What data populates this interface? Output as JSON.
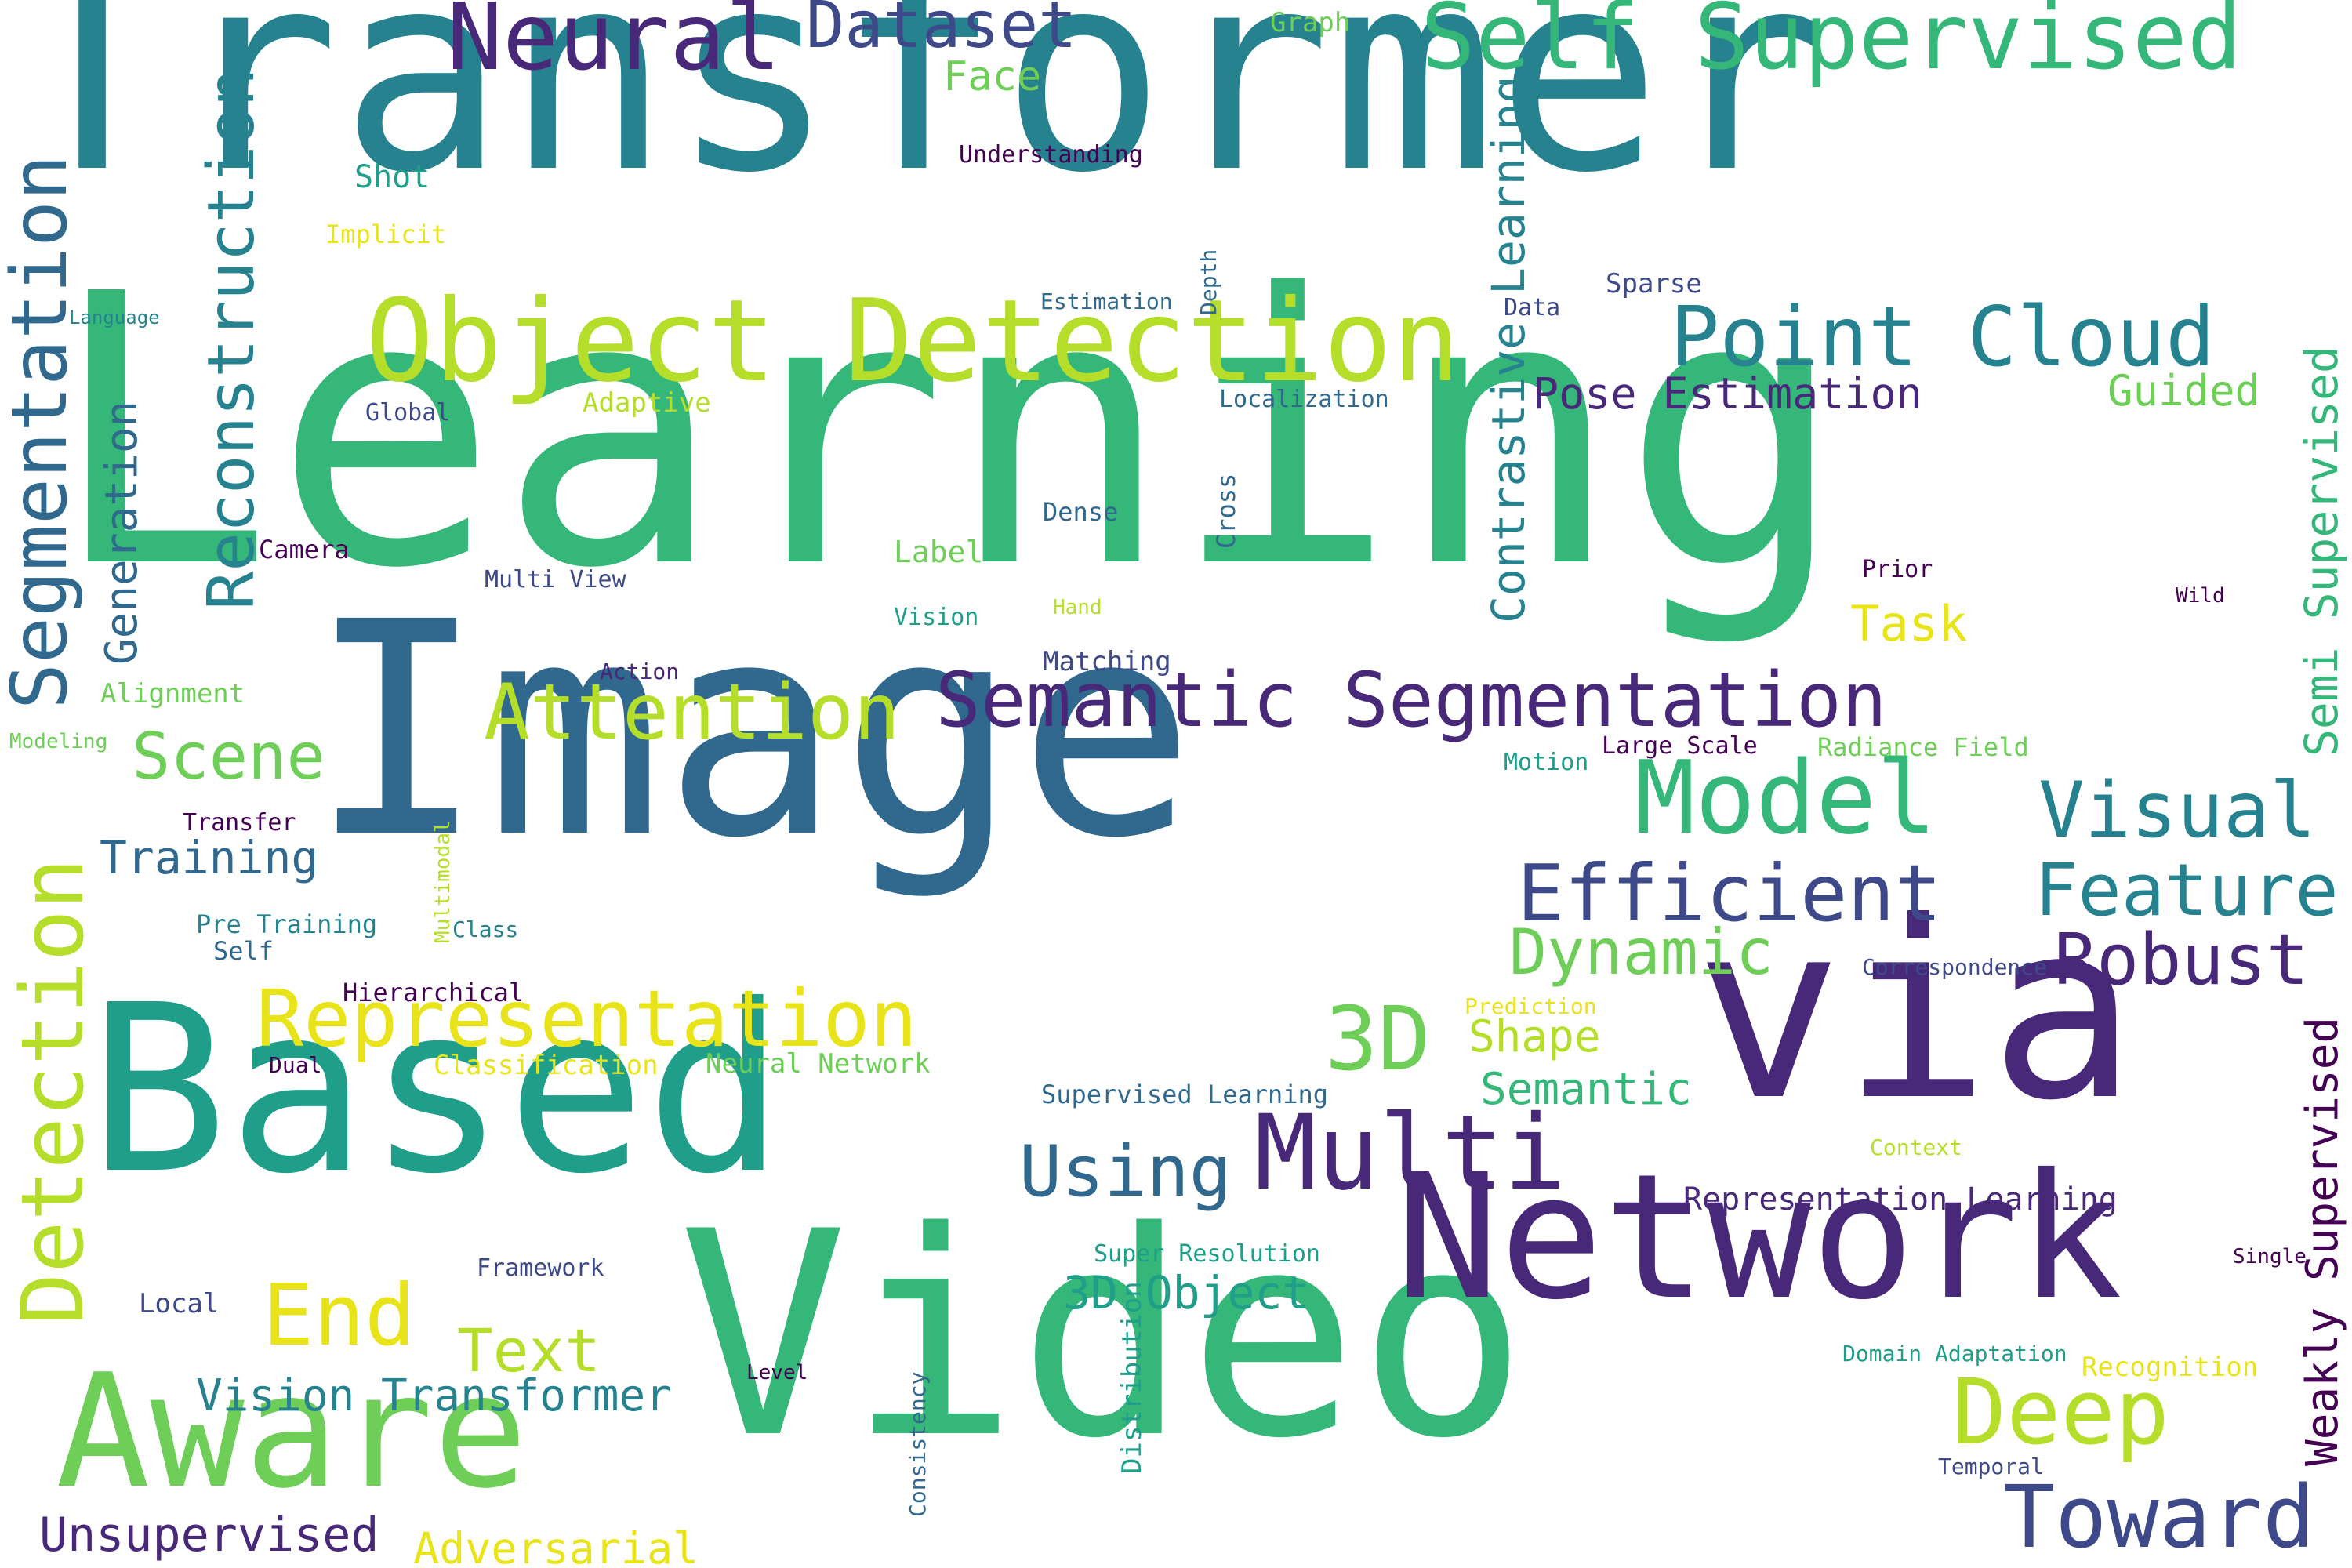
{
  "palette": {
    "dark_purple": "#440154",
    "indigo": "#482878",
    "blue_purple": "#3e4989",
    "steel_blue": "#31688e",
    "teal": "#26828e",
    "teal_green": "#1f9e89",
    "green": "#35b779",
    "light_green": "#6ece58",
    "lime": "#b5de2b",
    "yellow": "#e8e419"
  },
  "words": [
    {
      "text": "Transformer",
      "color": "#26828e"
    },
    {
      "text": "Learning",
      "color": "#35b779"
    },
    {
      "text": "Image",
      "color": "#31688e"
    },
    {
      "text": "Video",
      "color": "#35b779"
    },
    {
      "text": "Based",
      "color": "#1f9e89"
    },
    {
      "text": "via",
      "color": "#482878"
    },
    {
      "text": "Network",
      "color": "#482878"
    },
    {
      "text": "Aware",
      "color": "#6ece58"
    },
    {
      "text": "Object Detection",
      "color": "#b5de2b"
    },
    {
      "text": "Neural",
      "color": "#482878"
    },
    {
      "text": "Dataset",
      "color": "#3e4989"
    },
    {
      "text": "Self Supervised",
      "color": "#35b779"
    },
    {
      "text": "Point Cloud",
      "color": "#26828e"
    },
    {
      "text": "Semantic Segmentation",
      "color": "#482878"
    },
    {
      "text": "Attention",
      "color": "#b5de2b"
    },
    {
      "text": "Representation",
      "color": "#e8e419"
    },
    {
      "text": "Model",
      "color": "#35b779"
    },
    {
      "text": "Visual",
      "color": "#26828e"
    },
    {
      "text": "Efficient",
      "color": "#3e4989"
    },
    {
      "text": "Feature",
      "color": "#26828e"
    },
    {
      "text": "Robust",
      "color": "#482878"
    },
    {
      "text": "Dynamic",
      "color": "#6ece58"
    },
    {
      "text": "3D",
      "color": "#6ece58"
    },
    {
      "text": "Multi",
      "color": "#482878"
    },
    {
      "text": "Using",
      "color": "#31688e"
    },
    {
      "text": "Deep",
      "color": "#b5de2b"
    },
    {
      "text": "Toward",
      "color": "#3e4989"
    },
    {
      "text": "End",
      "color": "#e8e419"
    },
    {
      "text": "Text",
      "color": "#b5de2b"
    },
    {
      "text": "Vision Transformer",
      "color": "#26828e"
    },
    {
      "text": "Unsupervised",
      "color": "#482878"
    },
    {
      "text": "Adversarial",
      "color": "#e8e419"
    },
    {
      "text": "Scene",
      "color": "#6ece58"
    },
    {
      "text": "Training",
      "color": "#31688e"
    },
    {
      "text": "Pose Estimation",
      "color": "#482878"
    },
    {
      "text": "Guided",
      "color": "#6ece58"
    },
    {
      "text": "Task",
      "color": "#e8e419"
    },
    {
      "text": "Shape",
      "color": "#b5de2b"
    },
    {
      "text": "Semantic",
      "color": "#35b779"
    },
    {
      "text": "3D Object",
      "color": "#1f9e89"
    },
    {
      "text": "Representation Learning",
      "color": "#482878"
    },
    {
      "text": "Face",
      "color": "#6ece58"
    },
    {
      "text": "Graph",
      "color": "#6ece58"
    },
    {
      "text": "Understanding",
      "color": "#440154"
    },
    {
      "text": "Shot",
      "color": "#1f9e89"
    },
    {
      "text": "Implicit",
      "color": "#e8e419"
    },
    {
      "text": "Language",
      "color": "#26828e"
    },
    {
      "text": "Global",
      "color": "#3e4989"
    },
    {
      "text": "Adaptive",
      "color": "#b5de2b"
    },
    {
      "text": "Estimation",
      "color": "#31688e"
    },
    {
      "text": "Data",
      "color": "#3e4989"
    },
    {
      "text": "Sparse",
      "color": "#3e4989"
    },
    {
      "text": "Localization",
      "color": "#31688e"
    },
    {
      "text": "Dense",
      "color": "#31688e"
    },
    {
      "text": "Camera",
      "color": "#440154"
    },
    {
      "text": "Multi View",
      "color": "#3e4989"
    },
    {
      "text": "Label",
      "color": "#6ece58"
    },
    {
      "text": "Vision",
      "color": "#1f9e89"
    },
    {
      "text": "Hand",
      "color": "#b5de2b"
    },
    {
      "text": "Prior",
      "color": "#440154"
    },
    {
      "text": "Wild",
      "color": "#440154"
    },
    {
      "text": "Action",
      "color": "#482878"
    },
    {
      "text": "Matching",
      "color": "#3e4989"
    },
    {
      "text": "Alignment",
      "color": "#6ece58"
    },
    {
      "text": "Modeling",
      "color": "#6ece58"
    },
    {
      "text": "Large Scale",
      "color": "#440154"
    },
    {
      "text": "Radiance Field",
      "color": "#6ece58"
    },
    {
      "text": "Motion",
      "color": "#1f9e89"
    },
    {
      "text": "Transfer",
      "color": "#440154"
    },
    {
      "text": "Pre Training",
      "color": "#26828e"
    },
    {
      "text": "Self",
      "color": "#31688e"
    },
    {
      "text": "Class",
      "color": "#26828e"
    },
    {
      "text": "Correspondence",
      "color": "#3e4989"
    },
    {
      "text": "Hierarchical",
      "color": "#440154"
    },
    {
      "text": "Prediction",
      "color": "#e8e419"
    },
    {
      "text": "Dual",
      "color": "#440154"
    },
    {
      "text": "Classification",
      "color": "#e8e419"
    },
    {
      "text": "Neural Network",
      "color": "#6ece58"
    },
    {
      "text": "Supervised Learning",
      "color": "#31688e"
    },
    {
      "text": "Context",
      "color": "#b5de2b"
    },
    {
      "text": "Super Resolution",
      "color": "#1f9e89"
    },
    {
      "text": "Framework",
      "color": "#3e4989"
    },
    {
      "text": "Local",
      "color": "#3e4989"
    },
    {
      "text": "Single",
      "color": "#440154"
    },
    {
      "text": "Domain Adaptation",
      "color": "#1f9e89"
    },
    {
      "text": "Recognition",
      "color": "#e8e419"
    },
    {
      "text": "Level",
      "color": "#440154"
    },
    {
      "text": "Temporal",
      "color": "#3e4989"
    },
    {
      "text": "Segmentation",
      "color": "#31688e"
    },
    {
      "text": "Reconstruction",
      "color": "#26828e"
    },
    {
      "text": "Generation",
      "color": "#31688e"
    },
    {
      "text": "Detection",
      "color": "#b5de2b"
    },
    {
      "text": "Contrastive Learning",
      "color": "#26828e"
    },
    {
      "text": "Semi Supervised",
      "color": "#35b779"
    },
    {
      "text": "Weakly Supervised",
      "color": "#440154"
    },
    {
      "text": "Depth",
      "color": "#31688e"
    },
    {
      "text": "Cross",
      "color": "#31688e"
    },
    {
      "text": "Multimodal",
      "color": "#b5de2b"
    },
    {
      "text": "Distribution",
      "color": "#1f9e89"
    },
    {
      "text": "Consistency",
      "color": "#31688e"
    }
  ]
}
